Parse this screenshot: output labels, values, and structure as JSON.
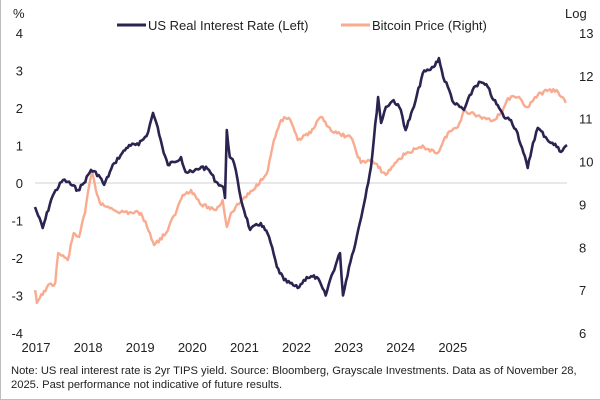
{
  "colors": {
    "real_rate": "#2b2450",
    "bitcoin": "#f9ab90",
    "zero_line": "#d0d0d0"
  },
  "note": "Note: US real interest rate is 2yr TIPS yield. Source: Bloomberg, Grayscale Investments. Data as of November 28, 2025. Past performance not indicative of future results.",
  "chart_data": {
    "type": "line",
    "left_axis": {
      "label": "%",
      "ylim": [
        -4,
        4
      ],
      "ticks": [
        "4",
        "3",
        "2",
        "1",
        "0",
        "-1",
        "-2",
        "-3",
        "-4"
      ]
    },
    "right_axis": {
      "label": "Log",
      "ylim": [
        6,
        13
      ],
      "ticks": [
        "13",
        "12",
        "11",
        "10",
        "9",
        "8",
        "7",
        "6"
      ]
    },
    "x_axis": {
      "ticks": [
        "2017",
        "2018",
        "2019",
        "2020",
        "2021",
        "2022",
        "2023",
        "2024",
        "2025"
      ],
      "xlim": [
        2017.0,
        2025.93
      ]
    },
    "legend_placement": "top",
    "grid": false,
    "series": [
      {
        "name": "US Real Interest Rate (Left)",
        "axis": "left",
        "points": [
          [
            2017.0,
            -0.64
          ],
          [
            2017.13,
            -1.2
          ],
          [
            2017.27,
            -0.45
          ],
          [
            2017.32,
            -0.27
          ],
          [
            2017.47,
            0.08
          ],
          [
            2017.55,
            0.03
          ],
          [
            2017.72,
            -0.19
          ],
          [
            2017.82,
            0.0
          ],
          [
            2017.94,
            0.35
          ],
          [
            2018.07,
            0.21
          ],
          [
            2018.16,
            -0.05
          ],
          [
            2018.33,
            0.53
          ],
          [
            2018.44,
            0.75
          ],
          [
            2018.58,
            1.01
          ],
          [
            2018.74,
            1.01
          ],
          [
            2018.9,
            1.36
          ],
          [
            2018.98,
            1.87
          ],
          [
            2019.06,
            1.49
          ],
          [
            2019.16,
            0.8
          ],
          [
            2019.23,
            0.48
          ],
          [
            2019.33,
            0.56
          ],
          [
            2019.45,
            0.69
          ],
          [
            2019.53,
            0.29
          ],
          [
            2019.65,
            0.29
          ],
          [
            2019.79,
            0.43
          ],
          [
            2019.92,
            0.35
          ],
          [
            2020.04,
            0.03
          ],
          [
            2020.16,
            -0.11
          ],
          [
            2020.19,
            -0.4
          ],
          [
            2020.22,
            1.41
          ],
          [
            2020.27,
            0.69
          ],
          [
            2020.34,
            0.53
          ],
          [
            2020.4,
            0.08
          ],
          [
            2020.46,
            -0.45
          ],
          [
            2020.61,
            -1.25
          ],
          [
            2020.79,
            -1.07
          ],
          [
            2020.93,
            -1.44
          ],
          [
            2021.06,
            -2.24
          ],
          [
            2021.18,
            -2.59
          ],
          [
            2021.41,
            -2.8
          ],
          [
            2021.56,
            -2.51
          ],
          [
            2021.73,
            -2.51
          ],
          [
            2021.88,
            -3.0
          ],
          [
            2021.95,
            -2.6
          ],
          [
            2022.12,
            -1.87
          ],
          [
            2022.17,
            -3.0
          ],
          [
            2022.27,
            -2.24
          ],
          [
            2022.4,
            -1.44
          ],
          [
            2022.5,
            -0.72
          ],
          [
            2022.64,
            0.43
          ],
          [
            2022.76,
            2.29
          ],
          [
            2022.81,
            1.6
          ],
          [
            2022.89,
            2.03
          ],
          [
            2023.02,
            2.21
          ],
          [
            2023.14,
            1.95
          ],
          [
            2023.22,
            1.41
          ],
          [
            2023.36,
            2.03
          ],
          [
            2023.51,
            2.93
          ],
          [
            2023.61,
            3.01
          ],
          [
            2023.69,
            3.09
          ],
          [
            2023.78,
            3.33
          ],
          [
            2023.85,
            2.83
          ],
          [
            2023.93,
            2.56
          ],
          [
            2024.03,
            2.13
          ],
          [
            2024.2,
            1.95
          ],
          [
            2024.37,
            2.56
          ],
          [
            2024.48,
            2.69
          ],
          [
            2024.6,
            2.56
          ],
          [
            2024.7,
            2.21
          ],
          [
            2024.79,
            2.0
          ],
          [
            2024.87,
            1.76
          ],
          [
            2024.99,
            1.68
          ],
          [
            2025.1,
            1.33
          ],
          [
            2025.2,
            0.8
          ],
          [
            2025.27,
            0.4
          ],
          [
            2025.36,
            1.07
          ],
          [
            2025.44,
            1.47
          ],
          [
            2025.57,
            1.23
          ],
          [
            2025.66,
            1.07
          ],
          [
            2025.78,
            0.96
          ],
          [
            2025.83,
            0.83
          ],
          [
            2025.93,
            1.01
          ]
        ]
      },
      {
        "name": "Bitcoin Price (Right)",
        "axis": "right",
        "points": [
          [
            2017.0,
            7.0
          ],
          [
            2017.03,
            6.7
          ],
          [
            2017.2,
            7.07
          ],
          [
            2017.34,
            7.17
          ],
          [
            2017.39,
            7.87
          ],
          [
            2017.55,
            7.7
          ],
          [
            2017.65,
            8.33
          ],
          [
            2017.74,
            8.24
          ],
          [
            2017.84,
            8.8
          ],
          [
            2017.91,
            9.45
          ],
          [
            2017.96,
            9.75
          ],
          [
            2018.02,
            9.34
          ],
          [
            2018.11,
            8.99
          ],
          [
            2018.28,
            8.92
          ],
          [
            2018.44,
            8.82
          ],
          [
            2018.78,
            8.8
          ],
          [
            2018.93,
            8.33
          ],
          [
            2019.0,
            8.05
          ],
          [
            2019.2,
            8.33
          ],
          [
            2019.38,
            8.87
          ],
          [
            2019.48,
            9.22
          ],
          [
            2019.62,
            9.34
          ],
          [
            2019.79,
            8.99
          ],
          [
            2020.04,
            8.87
          ],
          [
            2020.15,
            9.1
          ],
          [
            2020.22,
            8.47
          ],
          [
            2020.29,
            8.8
          ],
          [
            2020.47,
            9.1
          ],
          [
            2020.67,
            9.34
          ],
          [
            2020.91,
            9.8
          ],
          [
            2021.01,
            10.5
          ],
          [
            2021.13,
            10.97
          ],
          [
            2021.26,
            11.02
          ],
          [
            2021.41,
            10.5
          ],
          [
            2021.63,
            10.67
          ],
          [
            2021.8,
            11.04
          ],
          [
            2022.02,
            10.67
          ],
          [
            2022.3,
            10.57
          ],
          [
            2022.47,
            9.97
          ],
          [
            2022.64,
            10.04
          ],
          [
            2022.89,
            9.69
          ],
          [
            2023.09,
            10.04
          ],
          [
            2023.26,
            10.22
          ],
          [
            2023.53,
            10.34
          ],
          [
            2023.76,
            10.2
          ],
          [
            2023.93,
            10.67
          ],
          [
            2024.1,
            10.81
          ],
          [
            2024.2,
            11.2
          ],
          [
            2024.48,
            11.04
          ],
          [
            2024.7,
            10.97
          ],
          [
            2024.82,
            11.13
          ],
          [
            2024.94,
            11.48
          ],
          [
            2025.1,
            11.5
          ],
          [
            2025.27,
            11.27
          ],
          [
            2025.44,
            11.55
          ],
          [
            2025.62,
            11.67
          ],
          [
            2025.78,
            11.62
          ],
          [
            2025.91,
            11.37
          ]
        ]
      }
    ]
  }
}
